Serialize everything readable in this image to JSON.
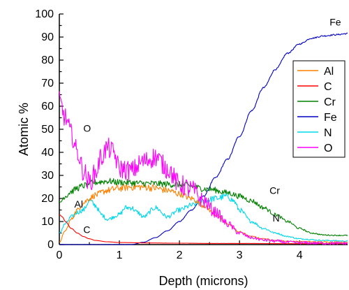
{
  "chart_data": {
    "type": "line",
    "title": "",
    "xlabel": "Depth (microns)",
    "ylabel": "Atomic %",
    "xlim": [
      0,
      4.8
    ],
    "ylim": [
      0,
      100
    ],
    "xticks": [
      "0",
      "1",
      "2",
      "3",
      "4"
    ],
    "yticks": [
      "0",
      "10",
      "20",
      "30",
      "40",
      "50",
      "60",
      "70",
      "80",
      "90",
      "100"
    ],
    "grid": false,
    "legend_position": "right",
    "series": [
      {
        "name": "Al",
        "color": "#ff8000",
        "x": [
          0,
          0.1,
          0.2,
          0.3,
          0.4,
          0.5,
          0.6,
          0.8,
          1.0,
          1.2,
          1.4,
          1.6,
          1.8,
          2.0,
          2.2,
          2.4,
          2.6,
          2.8,
          3.0,
          3.2,
          3.4,
          3.6,
          3.8,
          4.0,
          4.2,
          4.4,
          4.6,
          4.8
        ],
        "y": [
          1,
          6,
          11,
          15,
          18,
          20,
          21.5,
          23.5,
          24.5,
          25,
          25,
          24.5,
          23.5,
          22,
          20,
          17,
          13,
          9,
          5.5,
          3.5,
          2.5,
          1.8,
          1.5,
          1.3,
          1.2,
          1.1,
          1.1,
          1
        ]
      },
      {
        "name": "C",
        "color": "#ff0000",
        "x": [
          0,
          0.05,
          0.1,
          0.2,
          0.3,
          0.4,
          0.5,
          0.6,
          0.8,
          1.0,
          1.5,
          2.0,
          2.5,
          3.0,
          4.0,
          4.8
        ],
        "y": [
          13,
          12,
          10,
          7,
          5,
          3.5,
          2.5,
          1.8,
          1.2,
          0.9,
          0.7,
          0.6,
          0.5,
          0.5,
          0.4,
          0.4
        ]
      },
      {
        "name": "Cr",
        "color": "#008000",
        "x": [
          0,
          0.1,
          0.2,
          0.3,
          0.4,
          0.5,
          0.6,
          0.8,
          1.0,
          1.5,
          2.0,
          2.5,
          2.8,
          3.0,
          3.2,
          3.4,
          3.6,
          3.8,
          4.0,
          4.2,
          4.4,
          4.6,
          4.8
        ],
        "y": [
          18,
          21,
          23,
          24.5,
          25.5,
          26.5,
          27,
          27.5,
          27,
          26.5,
          26,
          24,
          22.5,
          21,
          19,
          16,
          13,
          10,
          7,
          5,
          4.2,
          4,
          4
        ]
      },
      {
        "name": "Fe",
        "color": "#0000c0",
        "x": [
          0,
          0.5,
          1.0,
          1.2,
          1.4,
          1.6,
          1.8,
          2.0,
          2.2,
          2.4,
          2.6,
          2.8,
          3.0,
          3.2,
          3.4,
          3.6,
          3.8,
          4.0,
          4.2,
          4.4,
          4.6,
          4.8
        ],
        "y": [
          0,
          0,
          0,
          0,
          1,
          3,
          6,
          10,
          15,
          21,
          29,
          37,
          47,
          58,
          68,
          76,
          83,
          87,
          89.5,
          90.5,
          91,
          91.5
        ]
      },
      {
        "name": "N",
        "color": "#00d8e8",
        "x": [
          0,
          0.1,
          0.2,
          0.3,
          0.4,
          0.5,
          0.6,
          0.7,
          0.8,
          1.0,
          1.1,
          1.2,
          1.3,
          1.4,
          1.6,
          1.8,
          2.0,
          2.2,
          2.4,
          2.6,
          2.8,
          2.9,
          3.0,
          3.2,
          3.4,
          3.6,
          3.8,
          4.0,
          4.4,
          4.8
        ],
        "y": [
          5,
          9,
          12,
          14,
          15,
          19,
          17,
          13,
          11,
          13,
          16,
          16,
          14,
          12,
          16,
          12,
          15,
          17,
          19,
          20,
          21,
          19,
          15,
          10,
          7,
          5,
          3.5,
          2.5,
          1.8,
          1.5
        ]
      },
      {
        "name": "O",
        "color": "#ff00ff",
        "x": [
          0,
          0.1,
          0.2,
          0.3,
          0.4,
          0.5,
          0.6,
          0.7,
          0.8,
          0.9,
          1.0,
          1.2,
          1.4,
          1.6,
          1.8,
          2.0,
          2.2,
          2.4,
          2.6,
          2.8,
          3.0,
          3.2,
          3.4,
          3.6,
          3.8,
          4.0,
          4.4,
          4.8
        ],
        "y": [
          62,
          55,
          48,
          40,
          32,
          27,
          31,
          38,
          42,
          40,
          33,
          32,
          36,
          38,
          33,
          26,
          24,
          19,
          14,
          9,
          5,
          3,
          2,
          1.5,
          1,
          0.8,
          0.6,
          0.5
        ]
      }
    ],
    "annotations": [
      {
        "text": "Fe",
        "x": 4.5,
        "y": 95
      },
      {
        "text": "O",
        "x": 0.4,
        "y": 49
      },
      {
        "text": "Al",
        "x": 0.25,
        "y": 16
      },
      {
        "text": "C",
        "x": 0.4,
        "y": 5
      },
      {
        "text": "Cr",
        "x": 3.5,
        "y": 22
      },
      {
        "text": "N",
        "x": 3.55,
        "y": 10
      }
    ]
  }
}
